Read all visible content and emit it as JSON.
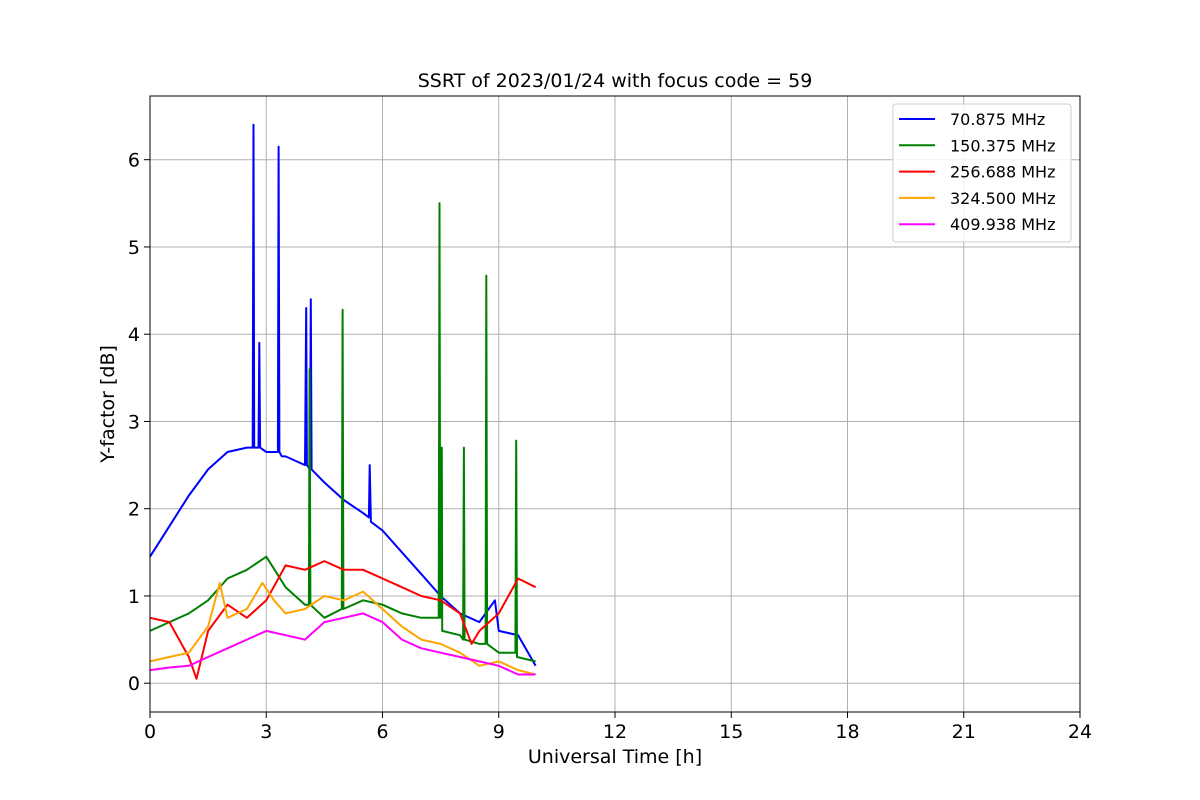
{
  "chart_data": {
    "type": "line",
    "title": "SSRT of 2023/01/24 with focus code = 59",
    "xlabel": "Universal Time [h]",
    "ylabel": "Y-factor [dB]",
    "xlim": [
      0,
      24
    ],
    "ylim": [
      -0.33,
      6.73
    ],
    "xticks": [
      0,
      3,
      6,
      9,
      12,
      15,
      18,
      21,
      24
    ],
    "yticks": [
      0,
      1,
      2,
      3,
      4,
      5,
      6
    ],
    "grid": true,
    "legend_position": "top-right",
    "series": [
      {
        "name": " 70.875 MHz",
        "color": "#0000ff",
        "x": [
          0,
          0.5,
          1,
          1.5,
          2,
          2.5,
          2.65,
          2.67,
          2.69,
          2.8,
          2.82,
          2.84,
          3,
          3.3,
          3.32,
          3.34,
          3.4,
          3.5,
          4,
          4.03,
          4.05,
          4.13,
          4.15,
          4.17,
          4.5,
          5,
          5.5,
          5.65,
          5.67,
          5.7,
          6,
          6.5,
          7,
          7.5,
          8,
          8.5,
          8.9,
          9,
          9.5,
          9.95
        ],
        "y": [
          1.45,
          1.8,
          2.15,
          2.45,
          2.65,
          2.7,
          2.7,
          6.4,
          2.7,
          2.7,
          3.9,
          2.7,
          2.65,
          2.65,
          6.15,
          2.65,
          2.6,
          2.6,
          2.5,
          4.3,
          2.5,
          2.45,
          4.4,
          2.45,
          2.3,
          2.1,
          1.95,
          1.9,
          2.5,
          1.85,
          1.75,
          1.5,
          1.25,
          1.0,
          0.8,
          0.7,
          0.95,
          0.6,
          0.55,
          0.2
        ]
      },
      {
        "name": "150.375 MHz",
        "color": "#008000",
        "x": [
          0,
          0.5,
          1,
          1.5,
          2,
          2.5,
          3,
          3.5,
          4,
          4.1,
          4.12,
          4.14,
          4.5,
          4.95,
          4.97,
          4.99,
          5.5,
          6,
          6.5,
          7,
          7.45,
          7.47,
          7.49,
          7.52,
          7.53,
          7.54,
          8,
          8.08,
          8.1,
          8.12,
          8.5,
          8.66,
          8.68,
          8.7,
          9,
          9.43,
          9.45,
          9.47,
          9.95
        ],
        "y": [
          0.6,
          0.7,
          0.8,
          0.95,
          1.2,
          1.3,
          1.45,
          1.1,
          0.9,
          0.9,
          3.6,
          0.9,
          0.75,
          0.85,
          4.28,
          0.85,
          0.95,
          0.9,
          0.8,
          0.75,
          0.75,
          5.5,
          0.75,
          0.75,
          2.7,
          0.6,
          0.55,
          0.5,
          2.7,
          0.5,
          0.45,
          0.45,
          4.67,
          0.45,
          0.35,
          0.35,
          2.78,
          0.3,
          0.25
        ]
      },
      {
        "name": "256.688 MHz",
        "color": "#ff0000",
        "x": [
          0,
          0.5,
          1,
          1.2,
          1.5,
          2,
          2.5,
          3,
          3.5,
          4,
          4.5,
          5,
          5.5,
          6,
          6.5,
          7,
          7.5,
          8,
          8.3,
          8.5,
          9,
          9.5,
          9.95
        ],
        "y": [
          0.75,
          0.7,
          0.3,
          0.05,
          0.6,
          0.9,
          0.75,
          0.95,
          1.35,
          1.3,
          1.4,
          1.3,
          1.3,
          1.2,
          1.1,
          1.0,
          0.95,
          0.8,
          0.45,
          0.6,
          0.8,
          1.2,
          1.1
        ]
      },
      {
        "name": "324.500 MHz",
        "color": "#ffa500",
        "x": [
          0,
          0.5,
          1,
          1.5,
          1.8,
          2,
          2.5,
          2.9,
          3.2,
          3.5,
          4,
          4.5,
          5,
          5.5,
          6,
          6.5,
          7,
          7.5,
          8,
          8.5,
          9,
          9.5,
          9.95
        ],
        "y": [
          0.25,
          0.3,
          0.35,
          0.65,
          1.15,
          0.75,
          0.85,
          1.15,
          0.95,
          0.8,
          0.85,
          1.0,
          0.95,
          1.05,
          0.85,
          0.65,
          0.5,
          0.45,
          0.35,
          0.2,
          0.25,
          0.15,
          0.1
        ]
      },
      {
        "name": "409.938 MHz",
        "color": "#ff00ff",
        "x": [
          0,
          0.5,
          1,
          1.5,
          2,
          2.5,
          3,
          3.5,
          4,
          4.5,
          5,
          5.5,
          6,
          6.5,
          7,
          7.5,
          8,
          8.5,
          9,
          9.5,
          9.95
        ],
        "y": [
          0.15,
          0.18,
          0.2,
          0.3,
          0.4,
          0.5,
          0.6,
          0.55,
          0.5,
          0.7,
          0.75,
          0.8,
          0.7,
          0.5,
          0.4,
          0.35,
          0.3,
          0.25,
          0.2,
          0.1,
          0.1
        ]
      }
    ]
  }
}
